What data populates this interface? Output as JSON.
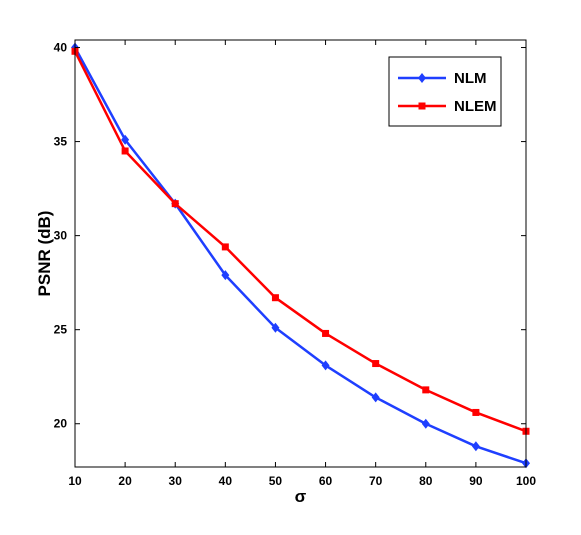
{
  "chart_data": {
    "type": "line",
    "title": "",
    "xlabel": "σ",
    "ylabel": "PSNR  (dB)",
    "xlim": [
      10,
      100
    ],
    "ylim": [
      17.7,
      40.4
    ],
    "xticks": [
      10,
      20,
      30,
      40,
      50,
      60,
      70,
      80,
      90,
      100
    ],
    "yticks": [
      20,
      25,
      30,
      35,
      40
    ],
    "grid": false,
    "legend_position": "top-right",
    "series": [
      {
        "name": "NLM",
        "color": "#1f3fff",
        "marker": "diamond",
        "x": [
          10,
          20,
          30,
          40,
          50,
          60,
          70,
          80,
          90,
          100
        ],
        "values": [
          40.0,
          35.1,
          31.7,
          27.9,
          25.1,
          23.1,
          21.4,
          20.0,
          18.8,
          17.9
        ]
      },
      {
        "name": "NLEM",
        "color": "#ff0000",
        "marker": "square",
        "x": [
          10,
          20,
          30,
          40,
          50,
          60,
          70,
          80,
          90,
          100
        ],
        "values": [
          39.8,
          34.5,
          31.7,
          29.4,
          26.7,
          24.8,
          23.2,
          21.8,
          20.6,
          19.6
        ]
      }
    ]
  }
}
